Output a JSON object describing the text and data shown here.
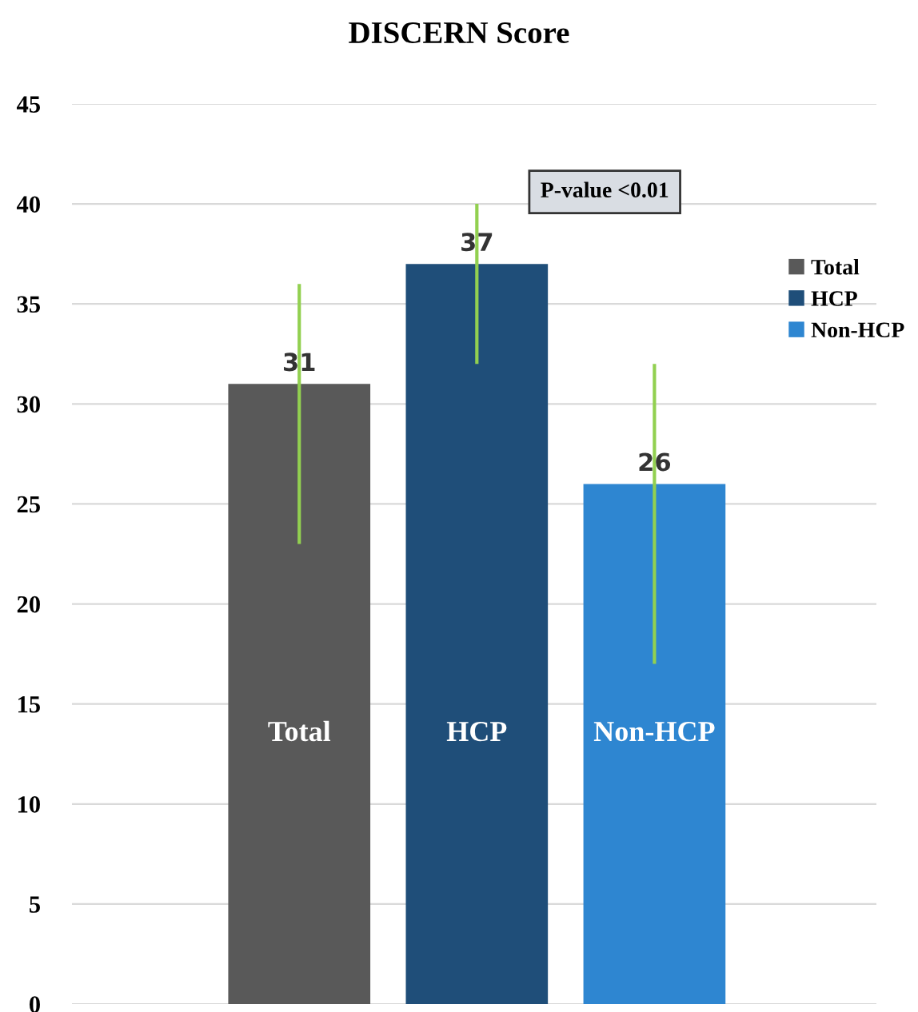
{
  "chart_data": {
    "type": "bar",
    "title": "DISCERN Score",
    "categories": [
      "Total",
      "HCP",
      "Non-HCP"
    ],
    "series": [
      {
        "name": "Total",
        "color": "#595959",
        "values": [
          31,
          null,
          null
        ],
        "errors": [
          [
            23,
            36
          ],
          null,
          null
        ]
      },
      {
        "name": "HCP",
        "color": "#1f4e79",
        "values": [
          null,
          37,
          null
        ],
        "errors": [
          null,
          [
            32,
            40
          ],
          null
        ]
      },
      {
        "name": "Non-HCP",
        "color": "#2e86d1",
        "values": [
          null,
          null,
          26
        ],
        "errors": [
          null,
          null,
          [
            17,
            32
          ]
        ]
      }
    ],
    "data_labels": true,
    "annotations": [
      "P-value <0.01"
    ],
    "ylim": [
      0,
      45
    ],
    "yticks": [
      0,
      5,
      10,
      15,
      20,
      25,
      30,
      35,
      40,
      45
    ],
    "grid": "y",
    "legend": "right"
  }
}
